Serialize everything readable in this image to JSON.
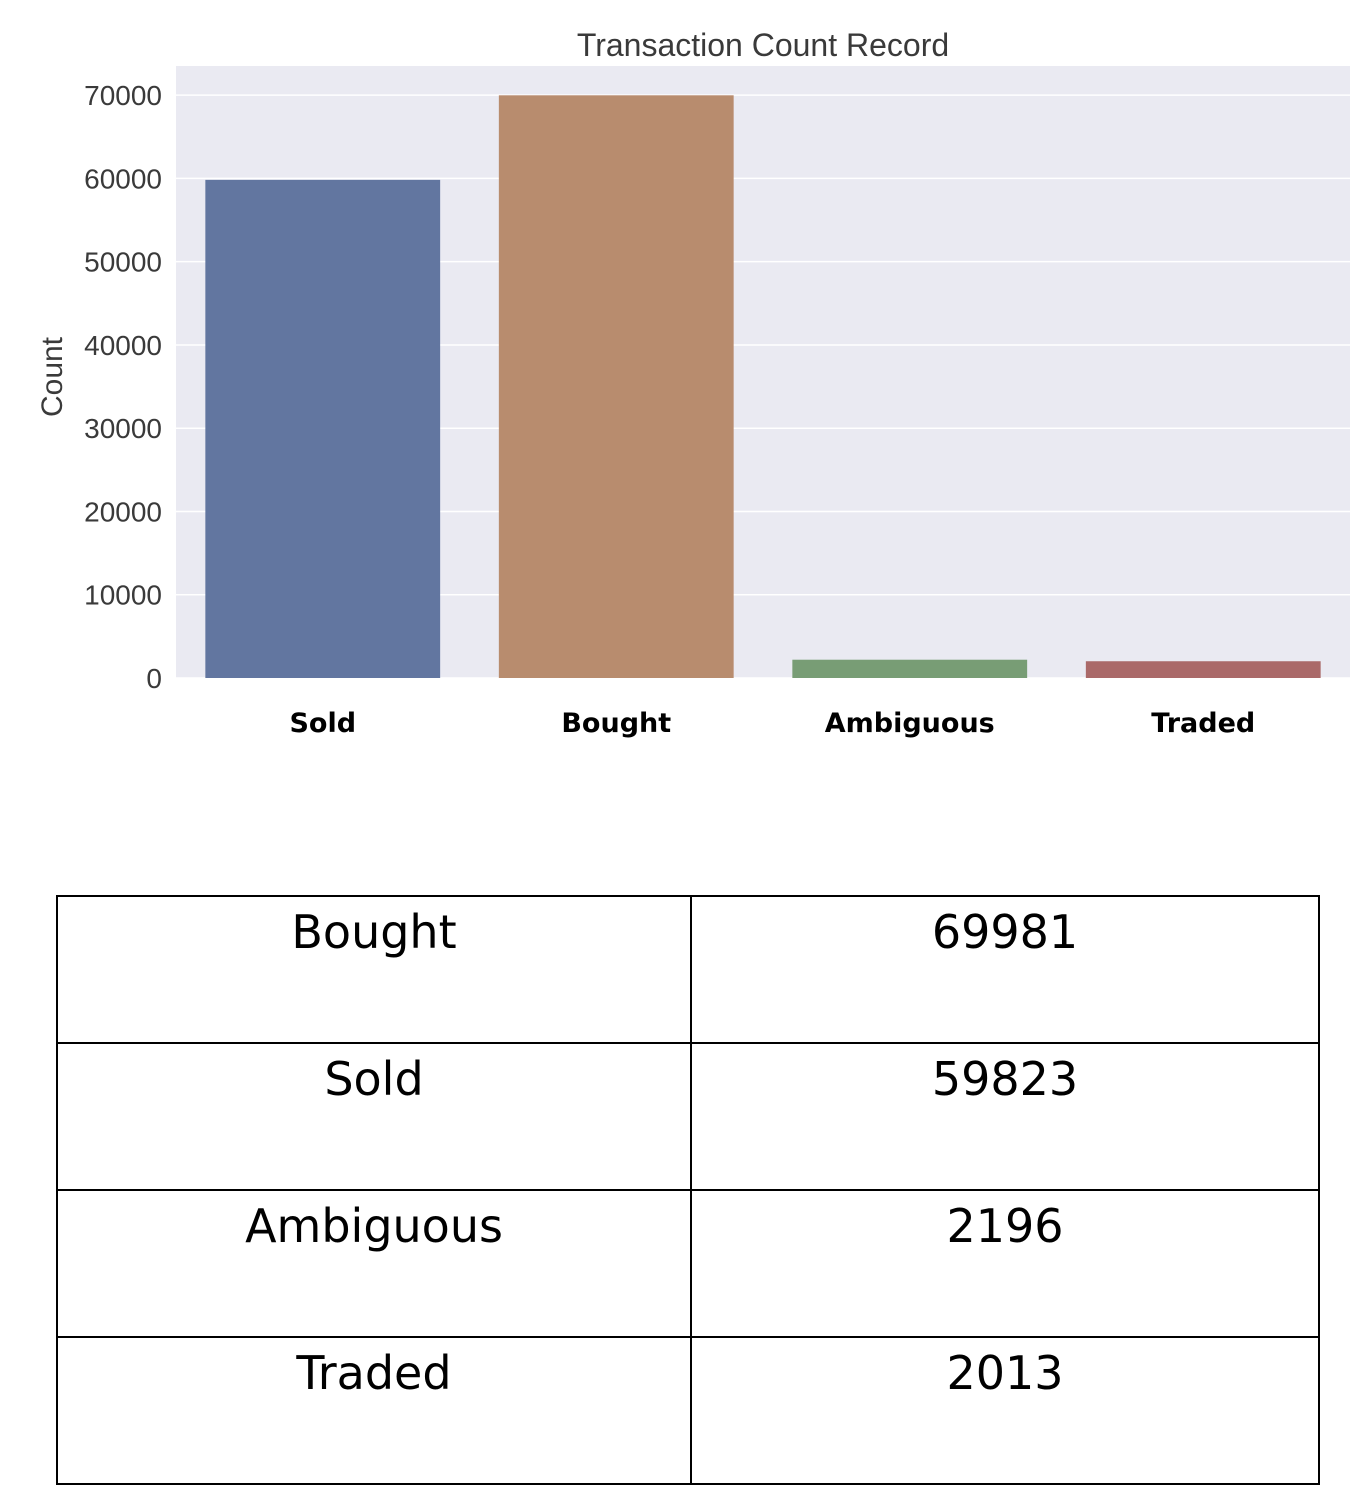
{
  "chart_data": {
    "type": "bar",
    "title": "Transaction Count Record",
    "xlabel": "",
    "ylabel": "Count",
    "categories": [
      "Sold",
      "Bought",
      "Ambiguous",
      "Traded"
    ],
    "values": [
      59823,
      69981,
      2196,
      2013
    ],
    "colors": [
      "#6276a0",
      "#b88c6e",
      "#789d75",
      "#aa6969"
    ],
    "background_color": "#eaeaf2",
    "grid": true,
    "ylim": [
      0,
      73500
    ],
    "yticks": [
      0,
      10000,
      20000,
      30000,
      40000,
      50000,
      60000,
      70000
    ],
    "ytick_labels": [
      "0",
      "10000",
      "20000",
      "30000",
      "40000",
      "50000",
      "60000",
      "70000"
    ]
  },
  "table": {
    "rows": [
      {
        "label": "Bought",
        "value": "69981"
      },
      {
        "label": "Sold",
        "value": "59823"
      },
      {
        "label": "Ambiguous",
        "value": "2196"
      },
      {
        "label": "Traded",
        "value": "2013"
      }
    ]
  }
}
